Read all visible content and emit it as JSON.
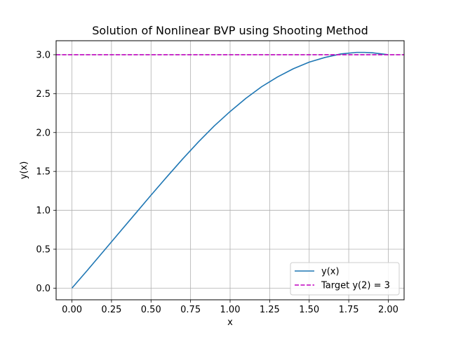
{
  "chart_data": {
    "type": "line",
    "title": "Solution of Nonlinear BVP using Shooting Method",
    "xlabel": "x",
    "ylabel": "y(x)",
    "xlim": [
      -0.1,
      2.1
    ],
    "ylim": [
      -0.15,
      3.18
    ],
    "grid": true,
    "legend_position": "lower-right",
    "x_ticks": [
      0.0,
      0.25,
      0.5,
      0.75,
      1.0,
      1.25,
      1.5,
      1.75,
      2.0
    ],
    "x_tick_labels": [
      "0.00",
      "0.25",
      "0.50",
      "0.75",
      "1.00",
      "1.25",
      "1.50",
      "1.75",
      "2.00"
    ],
    "y_ticks": [
      0.0,
      0.5,
      1.0,
      1.5,
      2.0,
      2.5,
      3.0
    ],
    "y_tick_labels": [
      "0.0",
      "0.5",
      "1.0",
      "1.5",
      "2.0",
      "2.5",
      "3.0"
    ],
    "series": [
      {
        "name": "y(x)",
        "color": "#1f77b4",
        "style": "solid",
        "x": [
          0.0,
          0.1,
          0.2,
          0.3,
          0.4,
          0.5,
          0.6,
          0.7,
          0.8,
          0.9,
          1.0,
          1.1,
          1.2,
          1.3,
          1.4,
          1.5,
          1.6,
          1.7,
          1.8,
          1.85,
          1.9,
          2.0
        ],
        "y": [
          0.0,
          0.235,
          0.475,
          0.715,
          0.955,
          1.195,
          1.43,
          1.66,
          1.88,
          2.085,
          2.27,
          2.44,
          2.59,
          2.715,
          2.82,
          2.905,
          2.965,
          3.01,
          3.03,
          3.03,
          3.025,
          3.0
        ]
      },
      {
        "name": "Target y(2) = 3",
        "color": "#bf00bf",
        "style": "dashed",
        "hline": 3.0
      }
    ]
  }
}
